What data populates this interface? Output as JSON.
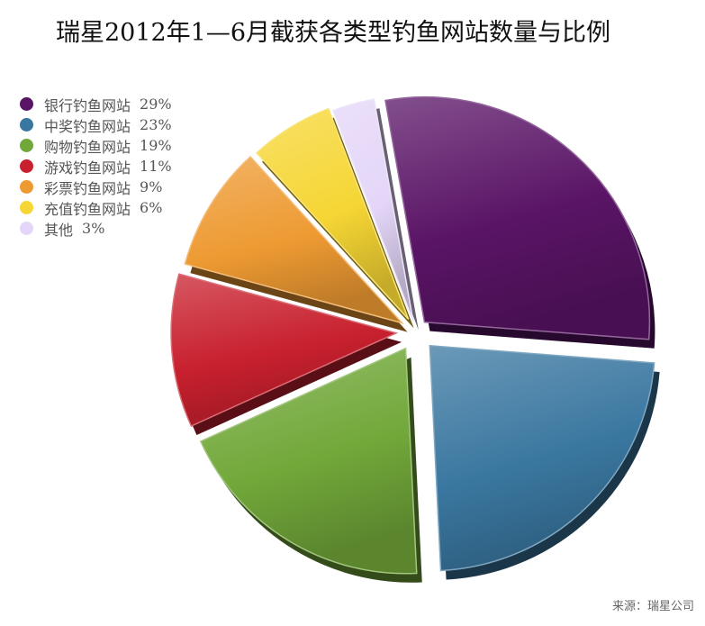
{
  "chart_data": {
    "type": "pie",
    "title": "瑞星2012年1—6月截获各类型钓鱼网站数量与比例",
    "legend_position": "left",
    "exploded": true,
    "style": "3d",
    "slices": [
      {
        "label": "银行钓鱼网站",
        "value": 29,
        "display": "29%",
        "color": "#5a1466"
      },
      {
        "label": "中奖钓鱼网站",
        "value": 23,
        "display": "23%",
        "color": "#3a77a0"
      },
      {
        "label": "购物钓鱼网站",
        "value": 19,
        "display": "19%",
        "color": "#72a83a"
      },
      {
        "label": "游戏钓鱼网站",
        "value": 11,
        "display": "11%",
        "color": "#c8202e"
      },
      {
        "label": "彩票钓鱼网站",
        "value": 9,
        "display": "9%",
        "color": "#ee9a32"
      },
      {
        "label": "充值钓鱼网站",
        "value": 6,
        "display": "6%",
        "color": "#f6d634"
      },
      {
        "label": "其他",
        "value": 3,
        "display": "3%",
        "color": "#e4d6f8"
      }
    ]
  },
  "source": "来源：瑞星公司"
}
